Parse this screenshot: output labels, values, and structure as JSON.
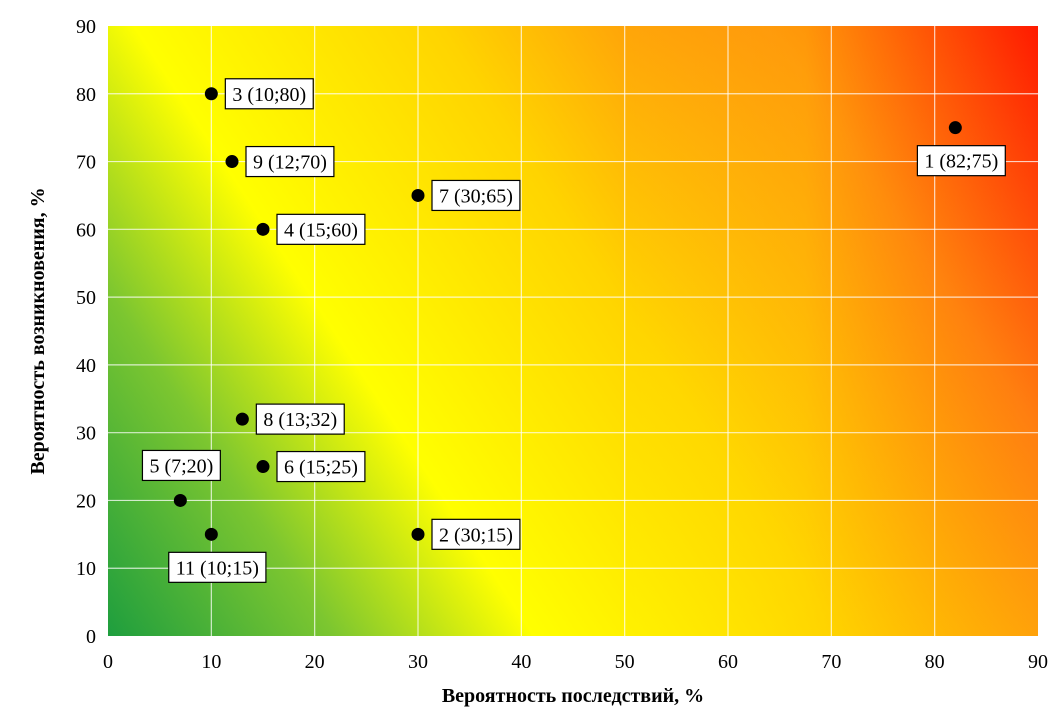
{
  "chart_data": {
    "type": "scatter",
    "title": "",
    "xlabel": "Вероятность последствий, %",
    "ylabel": "Вероятность возникновения, %",
    "xlim": [
      0,
      90
    ],
    "ylim": [
      0,
      90
    ],
    "xticks": [
      0,
      10,
      20,
      30,
      40,
      50,
      60,
      70,
      80,
      90
    ],
    "yticks": [
      0,
      10,
      20,
      30,
      40,
      50,
      60,
      70,
      80,
      90
    ],
    "grid": true,
    "background": "heatmap gradient green (low) to yellow to red (high)",
    "colors": {
      "low": "#1e9e3e",
      "mid": "#ffff00",
      "high": "#ff0000",
      "marker": "#000000"
    },
    "points": [
      {
        "id": "1",
        "x": 82,
        "y": 75,
        "label": "1 (82;75)",
        "label_pos": "below"
      },
      {
        "id": "2",
        "x": 30,
        "y": 15,
        "label": "2 (30;15)",
        "label_pos": "right"
      },
      {
        "id": "3",
        "x": 10,
        "y": 80,
        "label": "3 (10;80)",
        "label_pos": "right"
      },
      {
        "id": "4",
        "x": 15,
        "y": 60,
        "label": "4 (15;60)",
        "label_pos": "right"
      },
      {
        "id": "5",
        "x": 7,
        "y": 20,
        "label": "5 (7;20)",
        "label_pos": "above-left"
      },
      {
        "id": "6",
        "x": 15,
        "y": 25,
        "label": "6 (15;25)",
        "label_pos": "right"
      },
      {
        "id": "7",
        "x": 30,
        "y": 65,
        "label": "7 (30;65)",
        "label_pos": "right"
      },
      {
        "id": "8",
        "x": 13,
        "y": 32,
        "label": "8 (13;32)",
        "label_pos": "right"
      },
      {
        "id": "9",
        "x": 12,
        "y": 70,
        "label": "9 (12;70)",
        "label_pos": "right"
      },
      {
        "id": "11",
        "x": 10,
        "y": 15,
        "label": "11 (10;15)",
        "label_pos": "below"
      }
    ]
  }
}
